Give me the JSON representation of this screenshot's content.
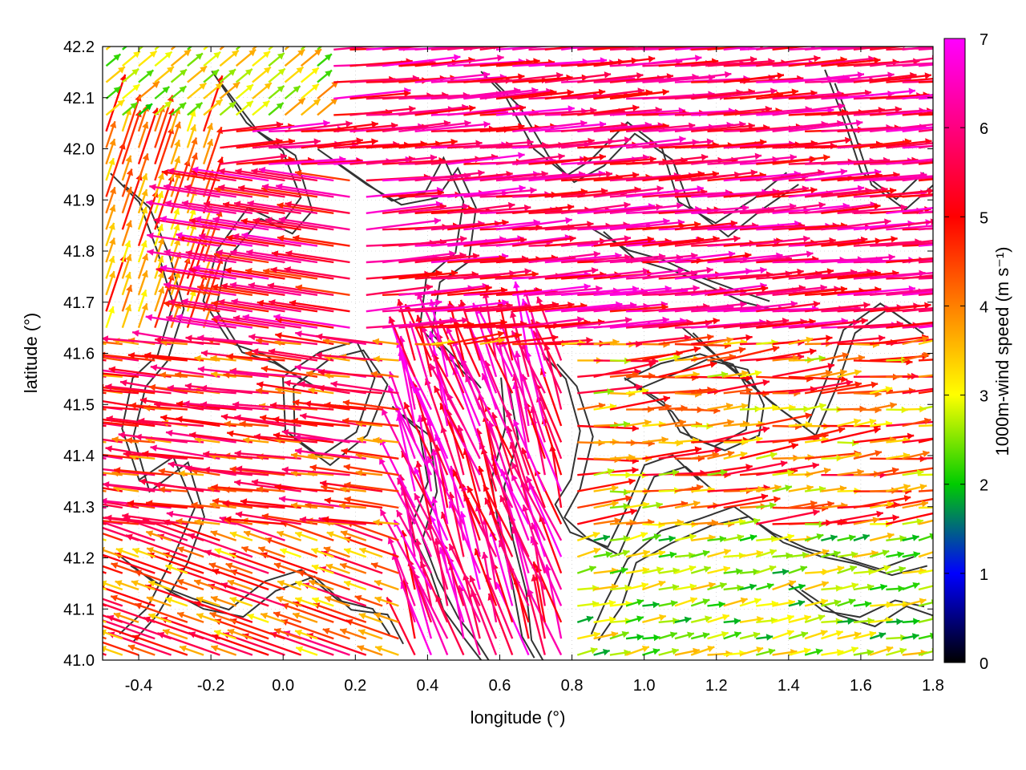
{
  "chart_data": {
    "type": "vector-field",
    "xlabel": "longitude (°)",
    "ylabel": "latitude (°)",
    "xlim": [
      -0.5,
      1.8
    ],
    "ylim": [
      41.0,
      42.2
    ],
    "x_ticks": [
      "-0.4",
      "-0.2",
      "0.0",
      "0.2",
      "0.4",
      "0.6",
      "0.8",
      "1.0",
      "1.2",
      "1.4",
      "1.6",
      "1.8"
    ],
    "y_ticks": [
      "41.0",
      "41.1",
      "41.2",
      "41.3",
      "41.4",
      "41.5",
      "41.6",
      "41.7",
      "41.8",
      "41.9",
      "42.0",
      "42.1",
      "42.2"
    ],
    "grid": true,
    "colorbar": {
      "label": "1000m-wind speed (m s⁻¹)",
      "range": [
        0,
        7
      ],
      "ticks": [
        "0",
        "1",
        "2",
        "3",
        "4",
        "5",
        "6",
        "7"
      ],
      "palette": [
        "#000000",
        "#0000ff",
        "#00cc00",
        "#ffff00",
        "#ff8000",
        "#ff0000",
        "#ff00ff"
      ]
    },
    "contour_color": "#333333",
    "flow_regions": [
      {
        "name": "north",
        "lat": [
          41.62,
          42.2
        ],
        "direction": "eastward",
        "speed_range": [
          4.5,
          7
        ]
      },
      {
        "name": "west",
        "lat": [
          41.25,
          41.62
        ],
        "direction": "westward",
        "speed_range": [
          3.5,
          6.5
        ]
      },
      {
        "name": "central",
        "lon": [
          0.35,
          0.75
        ],
        "lat": [
          41.0,
          41.6
        ],
        "direction": "north-northwest",
        "speed_range": [
          5,
          7
        ]
      },
      {
        "name": "south-east",
        "lat": [
          41.0,
          41.25
        ],
        "direction": "eastward",
        "speed_range": [
          1.5,
          3.5
        ]
      }
    ]
  }
}
